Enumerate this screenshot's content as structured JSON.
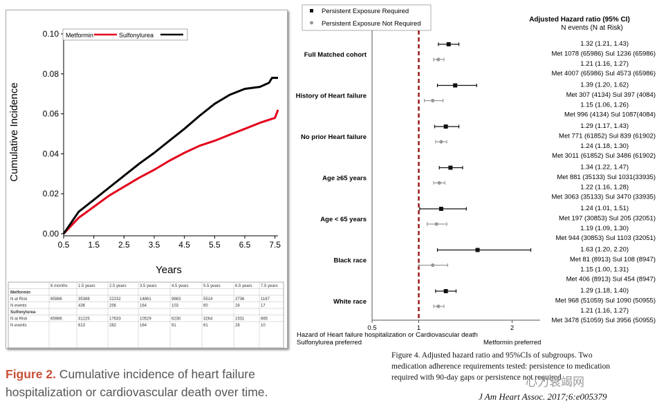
{
  "left_figure": {
    "caption_label": "Figure 2.",
    "caption_text": " Cumulative incidence of heart failure hospitalization or cardiovascular death over time.",
    "risk_table": {
      "headers": [
        "",
        "6 months",
        "1.5 years",
        "2.5 years",
        "3.5 years",
        "4.5 years",
        "5.5 years",
        "6.5 years",
        "7.5 years"
      ],
      "groups": [
        {
          "name": "Metformin",
          "rows": [
            {
              "label": "N at Risk",
              "values": [
                "65986",
                "35388",
                "22232",
                "14861",
                "9863",
                "5514",
                "2736",
                "1187"
              ]
            },
            {
              "label": "N events",
              "values": [
                "",
                "436",
                "256",
                "164",
                "103",
                "60",
                "28",
                "17"
              ]
            }
          ]
        },
        {
          "name": "Sulfonylurea",
          "rows": [
            {
              "label": "N at Risk",
              "values": [
                "65986",
                "31225",
                "17633",
                "10529",
                "6230",
                "3264",
                "1531",
                "665"
              ]
            },
            {
              "label": "N events",
              "values": [
                "",
                "613",
                "282",
                "164",
                "91",
                "61",
                "28",
                "10"
              ]
            }
          ]
        }
      ]
    }
  },
  "chart_data": [
    {
      "type": "line",
      "title": "",
      "xlabel": "Years",
      "ylabel": "Cumulative Incidence",
      "xlim": [
        0.5,
        7.6
      ],
      "ylim": [
        0,
        0.1
      ],
      "xticks": [
        "0.5",
        "1.5",
        "2.5",
        "3.5",
        "4.5",
        "5.5",
        "6.5",
        "7.5"
      ],
      "yticks": [
        "0.00",
        "0.02",
        "0.04",
        "0.06",
        "0.08",
        "0.10"
      ],
      "legend": "top-left",
      "series": [
        {
          "name": "Metformin",
          "color": "#e3001b",
          "x": [
            0.5,
            1.0,
            1.5,
            2.0,
            2.5,
            3.0,
            3.5,
            4.0,
            4.5,
            5.0,
            5.5,
            6.0,
            6.5,
            7.0,
            7.5,
            7.6
          ],
          "y": [
            0.0,
            0.008,
            0.0135,
            0.019,
            0.0235,
            0.028,
            0.032,
            0.0365,
            0.0405,
            0.044,
            0.0465,
            0.0495,
            0.0525,
            0.0555,
            0.058,
            0.062
          ]
        },
        {
          "name": "Sulfonylurea",
          "color": "#000000",
          "x": [
            0.5,
            1.0,
            1.5,
            2.0,
            2.5,
            3.0,
            3.5,
            4.0,
            4.5,
            5.0,
            5.5,
            6.0,
            6.5,
            7.0,
            7.3,
            7.4,
            7.6
          ],
          "y": [
            0.0,
            0.011,
            0.017,
            0.023,
            0.029,
            0.035,
            0.0405,
            0.0465,
            0.0525,
            0.059,
            0.065,
            0.0695,
            0.0725,
            0.0735,
            0.0755,
            0.078,
            0.078
          ]
        }
      ]
    },
    {
      "type": "forest",
      "header_title": "Adjusted Hazard ratio (95% CI)",
      "header_subtitle": "N events (N at Risk)",
      "xlabel": "Hazard of Heart failure hospitalization or Cardiovascular death",
      "left_label": "Sulfonylurea preferred",
      "right_label": "Metformin preferred",
      "xlim": [
        0.5,
        2.3
      ],
      "xticks": [
        "0.5",
        "1",
        "2"
      ],
      "reference": 1,
      "legend": [
        {
          "name": "Persistent Exposure Required",
          "color": "#111111"
        },
        {
          "name": "Persistent Exposure Not Required",
          "color": "#999999"
        }
      ],
      "subgroups": [
        {
          "label": "Full Matched cohort",
          "estimates": [
            {
              "hr": 1.32,
              "lo": 1.21,
              "hi": 1.43,
              "ci_text": "1.32 (1.21, 1.43)",
              "events_text": "Met 1078 (65986) Sul 1236 (65986)"
            },
            {
              "hr": 1.21,
              "lo": 1.16,
              "hi": 1.27,
              "ci_text": "1.21 (1.16, 1.27)",
              "events_text": "Met 4007 (65986) Sul 4573 (65986)"
            }
          ]
        },
        {
          "label": "History of Heart failure",
          "estimates": [
            {
              "hr": 1.39,
              "lo": 1.2,
              "hi": 1.62,
              "ci_text": "1.39 (1.20, 1.62)",
              "events_text": "Met 307 (4134) Sul 397 (4084)"
            },
            {
              "hr": 1.15,
              "lo": 1.06,
              "hi": 1.26,
              "ci_text": "1.15 (1.06, 1.26)",
              "events_text": "Met 996 (4134) Sul  1087(4084)"
            }
          ]
        },
        {
          "label": "No prior Heart failure",
          "estimates": [
            {
              "hr": 1.29,
              "lo": 1.17,
              "hi": 1.43,
              "ci_text": "1.29 (1.17, 1.43)",
              "events_text": "Met 771 (61852) Sul  839 (61902)"
            },
            {
              "hr": 1.24,
              "lo": 1.18,
              "hi": 1.3,
              "ci_text": "1.24 (1.18, 1.30)",
              "events_text": "Met 3011 (61852) Sul  3486 (61902)"
            }
          ]
        },
        {
          "label": "Age ≥65 years",
          "estimates": [
            {
              "hr": 1.34,
              "lo": 1.22,
              "hi": 1.47,
              "ci_text": "1.34 (1.22, 1.47)",
              "events_text": "Met 881 (35133)  Sul  1031(33935)"
            },
            {
              "hr": 1.22,
              "lo": 1.16,
              "hi": 1.28,
              "ci_text": "1.22 (1.16, 1.28)",
              "events_text": "Met 3063 (35133) Sul 3470 (33935)"
            }
          ]
        },
        {
          "label": "Age < 65 years",
          "estimates": [
            {
              "hr": 1.24,
              "lo": 1.01,
              "hi": 1.51,
              "ci_text": "1.24  (1.01, 1.51)",
              "events_text": "Met 197 (30853)  Sul 205 (32051)"
            },
            {
              "hr": 1.19,
              "lo": 1.09,
              "hi": 1.3,
              "ci_text": "1.19  (1.09, 1.30)",
              "events_text": "Met 944 (30853)  Sul 1103 (32051)"
            }
          ]
        },
        {
          "label": "Black race",
          "estimates": [
            {
              "hr": 1.63,
              "lo": 1.2,
              "hi": 2.2,
              "ci_text": "1.63 (1.20, 2.20)",
              "events_text": "Met 81 (8913)  Sul  108 (8947)"
            },
            {
              "hr": 1.15,
              "lo": 1.0,
              "hi": 1.31,
              "ci_text": "1.15 (1.00, 1.31)",
              "events_text": "Met 406 (8913)  Sul  454 (8947)"
            }
          ]
        },
        {
          "label": "White race",
          "estimates": [
            {
              "hr": 1.29,
              "lo": 1.18,
              "hi": 1.4,
              "ci_text": "1.29 (1.18, 1.40)",
              "events_text": "Met 968 (51059)  Sul 1090 (50955)"
            },
            {
              "hr": 1.21,
              "lo": 1.16,
              "hi": 1.27,
              "ci_text": "1.21 (1.16, 1.27)",
              "events_text": "Met 3478 (51059) Sul 3956 (50955)"
            }
          ]
        }
      ]
    }
  ],
  "right_figure": {
    "caption": "Figure 4. Adjusted hazard ratio and 95%CIs of subgroups. Two medication adherence requirements tested: persistence to medication required with 90-day gaps or persistence not required",
    "citation": "J Am Heart Assoc. 2017;6:e005379",
    "watermark": "心力衰竭网"
  }
}
